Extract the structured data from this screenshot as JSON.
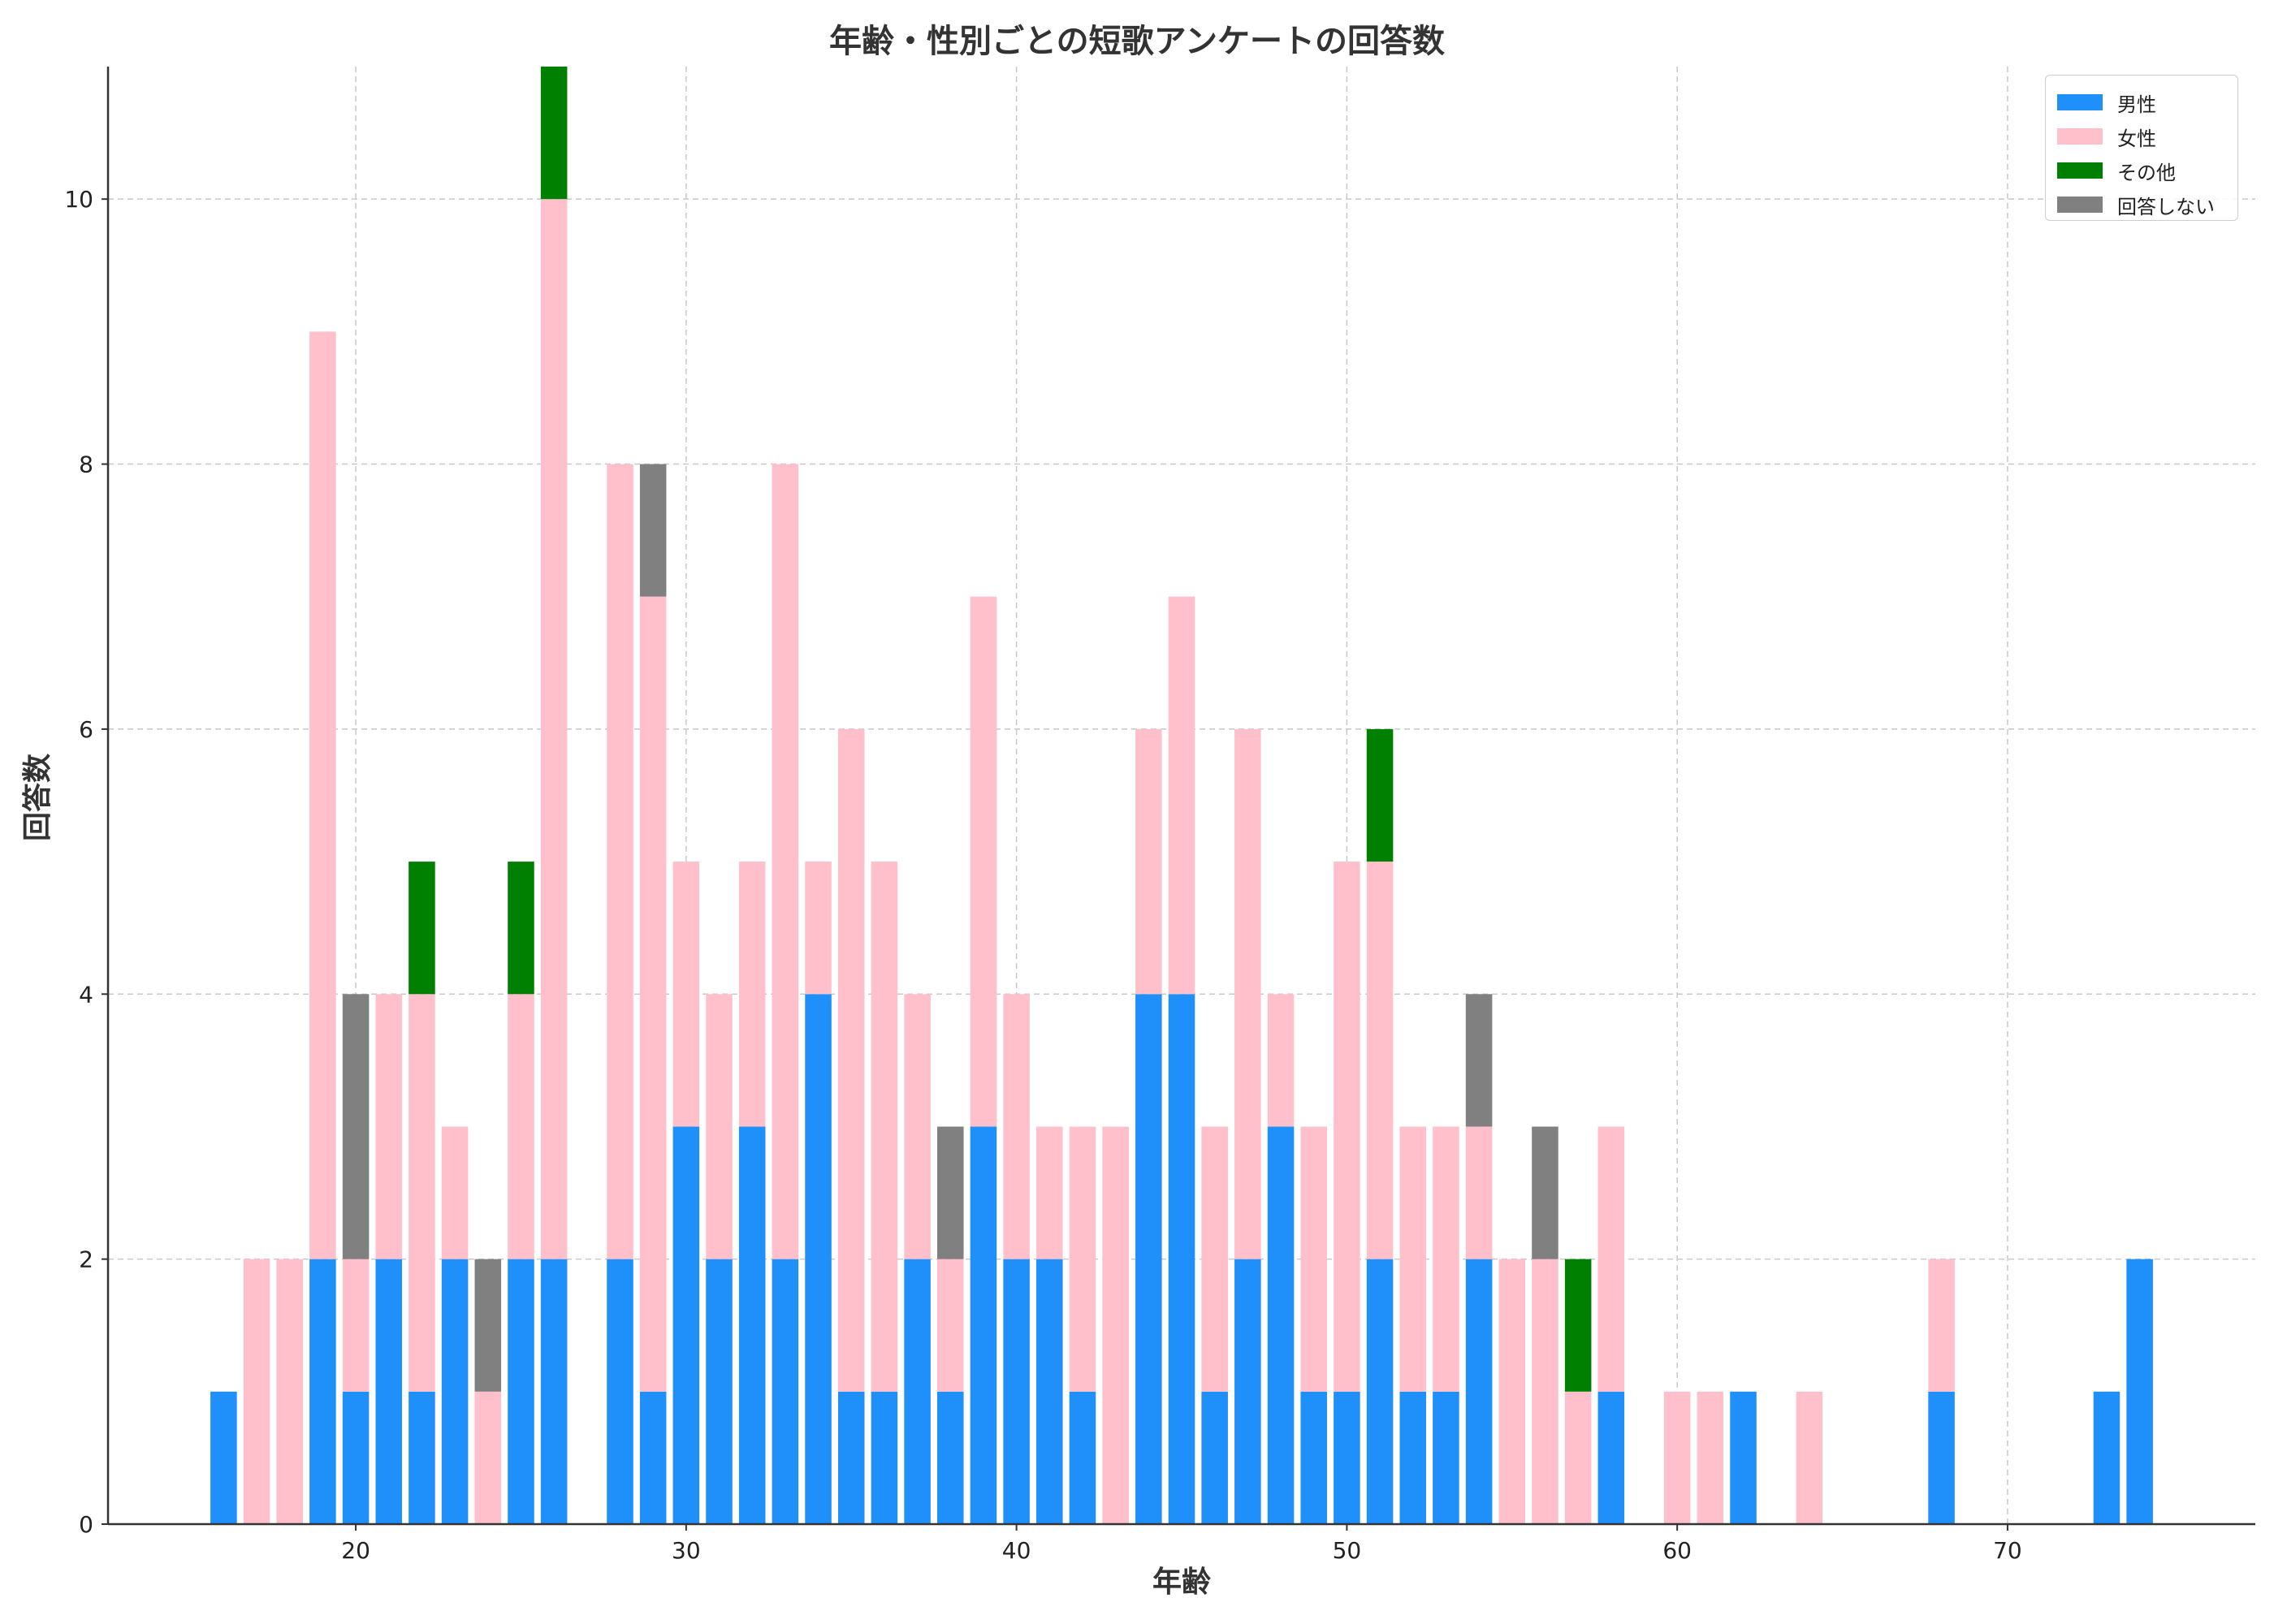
{
  "chart_data": {
    "type": "bar",
    "stacked": true,
    "title": "年齢・性別ごとの短歌アンケートの回答数",
    "xlabel": "年齢",
    "ylabel": "回答数",
    "xlim": [
      12.5,
      77.5
    ],
    "ylim": [
      0,
      11
    ],
    "xticks": [
      20,
      30,
      40,
      50,
      60,
      70
    ],
    "yticks": [
      0,
      2,
      4,
      6,
      8,
      10
    ],
    "grid": true,
    "legend_position": "top-right",
    "x": [
      16,
      17,
      18,
      19,
      20,
      21,
      22,
      23,
      24,
      25,
      26,
      28,
      29,
      30,
      31,
      32,
      33,
      34,
      35,
      36,
      37,
      38,
      39,
      40,
      41,
      42,
      43,
      44,
      45,
      46,
      47,
      48,
      49,
      50,
      51,
      52,
      53,
      54,
      55,
      56,
      57,
      58,
      60,
      61,
      62,
      64,
      68,
      73,
      74
    ],
    "series": [
      {
        "name": "男性",
        "color": "#1f8ffa",
        "values": [
          1,
          0,
          0,
          2,
          1,
          2,
          1,
          2,
          0,
          2,
          2,
          2,
          1,
          3,
          2,
          3,
          2,
          4,
          1,
          1,
          2,
          1,
          3,
          2,
          2,
          1,
          0,
          4,
          4,
          1,
          2,
          3,
          1,
          1,
          2,
          1,
          1,
          2,
          0,
          0,
          0,
          1,
          0,
          0,
          1,
          0,
          1,
          1,
          2
        ]
      },
      {
        "name": "女性",
        "color": "#ffc0cb",
        "values": [
          0,
          2,
          2,
          7,
          1,
          2,
          3,
          1,
          1,
          2,
          8,
          6,
          6,
          2,
          2,
          2,
          6,
          1,
          5,
          4,
          2,
          1,
          4,
          2,
          1,
          2,
          3,
          2,
          3,
          2,
          4,
          1,
          2,
          4,
          3,
          2,
          2,
          1,
          2,
          2,
          1,
          2,
          1,
          1,
          0,
          1,
          1,
          0,
          0
        ]
      },
      {
        "name": "その他",
        "color": "#008000",
        "values": [
          0,
          0,
          0,
          0,
          0,
          0,
          1,
          0,
          0,
          1,
          1,
          0,
          0,
          0,
          0,
          0,
          0,
          0,
          0,
          0,
          0,
          0,
          0,
          0,
          0,
          0,
          0,
          0,
          0,
          0,
          0,
          0,
          0,
          0,
          1,
          0,
          0,
          0,
          0,
          0,
          1,
          0,
          0,
          0,
          0,
          0,
          0,
          0,
          0
        ]
      },
      {
        "name": "回答しない",
        "color": "#808080",
        "values": [
          0,
          0,
          0,
          0,
          2,
          0,
          0,
          0,
          1,
          0,
          0,
          0,
          1,
          0,
          0,
          0,
          0,
          0,
          0,
          0,
          0,
          1,
          0,
          0,
          0,
          0,
          0,
          0,
          0,
          0,
          0,
          0,
          0,
          0,
          0,
          0,
          0,
          1,
          0,
          1,
          0,
          0,
          0,
          0,
          0,
          0,
          0,
          0,
          0
        ]
      }
    ]
  }
}
